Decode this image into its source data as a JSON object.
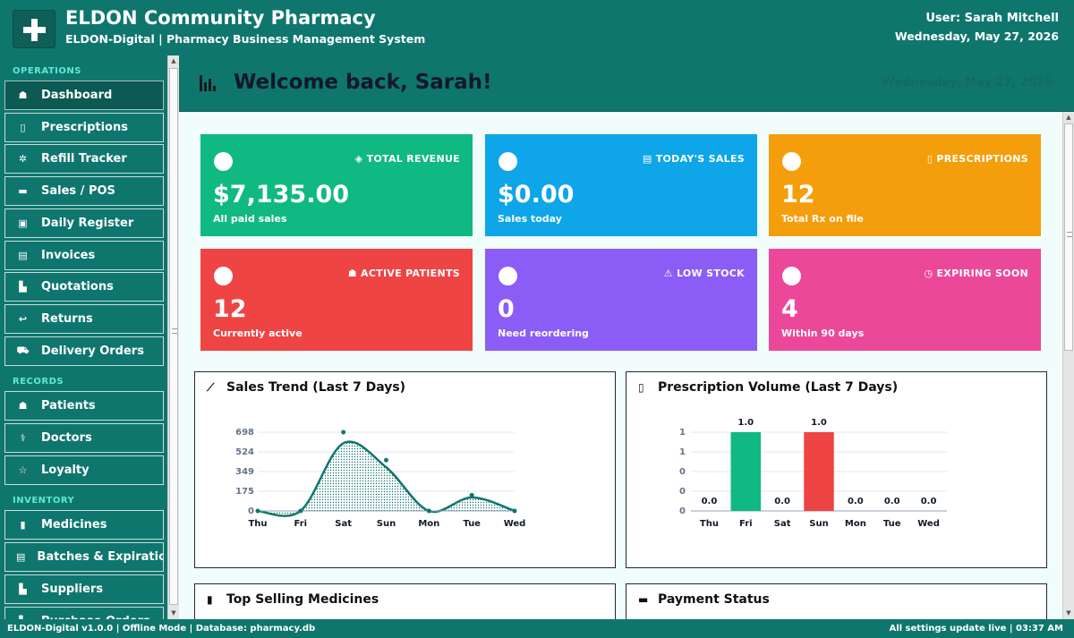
{
  "header": {
    "title": "ELDON Community Pharmacy",
    "subtitle": "ELDON-Digital  |  Pharmacy Business Management System",
    "user": "User: Sarah Mitchell",
    "date": "Wednesday, May 27, 2026"
  },
  "sidebar": {
    "sections": [
      {
        "label": "OPERATIONS",
        "items": [
          {
            "icon": "home-icon",
            "glyph": "☗",
            "label": "Dashboard",
            "active": true
          },
          {
            "icon": "clipboard-icon",
            "glyph": "▯",
            "label": "Prescriptions"
          },
          {
            "icon": "refill-icon",
            "glyph": "✲",
            "label": "Refill Tracker"
          },
          {
            "icon": "card-icon",
            "glyph": "▬",
            "label": "Sales / POS"
          },
          {
            "icon": "register-icon",
            "glyph": "▣",
            "label": "Daily Register"
          },
          {
            "icon": "invoice-icon",
            "glyph": "▤",
            "label": "Invoices"
          },
          {
            "icon": "quote-icon",
            "glyph": "▙",
            "label": "Quotations"
          },
          {
            "icon": "return-icon",
            "glyph": "↩",
            "label": "Returns"
          },
          {
            "icon": "truck-icon",
            "glyph": "⛟",
            "label": "Delivery Orders"
          }
        ]
      },
      {
        "label": "RECORDS",
        "items": [
          {
            "icon": "patients-icon",
            "glyph": "☗",
            "label": "Patients"
          },
          {
            "icon": "stethoscope-icon",
            "glyph": "⚕",
            "label": "Doctors"
          },
          {
            "icon": "star-icon",
            "glyph": "☆",
            "label": "Loyalty"
          }
        ]
      },
      {
        "label": "INVENTORY",
        "items": [
          {
            "icon": "medicine-icon",
            "glyph": "▮",
            "label": "Medicines"
          },
          {
            "icon": "batches-icon",
            "glyph": "▤",
            "label": "Batches & Expiratio"
          },
          {
            "icon": "suppliers-icon",
            "glyph": "▙",
            "label": "Suppliers"
          },
          {
            "icon": "cart-icon",
            "glyph": "▚",
            "label": "Purchase Orders"
          }
        ]
      }
    ]
  },
  "welcome": {
    "title": "Welcome back, Sarah!",
    "date": "Wednesday, May 27, 2026"
  },
  "cards": [
    {
      "icon": "revenue-icon",
      "glyph": "◈",
      "label": "TOTAL REVENUE",
      "value": "$7,135.00",
      "sub": "All paid sales",
      "color": "#10b981"
    },
    {
      "icon": "sales-icon",
      "glyph": "▤",
      "label": "TODAY'S SALES",
      "value": "$0.00",
      "sub": "Sales today",
      "color": "#0ea5e9"
    },
    {
      "icon": "prescription-icon",
      "glyph": "▯",
      "label": "PRESCRIPTIONS",
      "value": "12",
      "sub": "Total Rx on file",
      "color": "#f59e0b"
    },
    {
      "icon": "patients-icon",
      "glyph": "☗",
      "label": "ACTIVE PATIENTS",
      "value": "12",
      "sub": "Currently active",
      "color": "#ef4444"
    },
    {
      "icon": "warning-icon",
      "glyph": "⚠",
      "label": "LOW STOCK",
      "value": "0",
      "sub": "Need reordering",
      "color": "#8b5cf6"
    },
    {
      "icon": "clock-icon",
      "glyph": "◷",
      "label": "EXPIRING SOON",
      "value": "4",
      "sub": "Within 90 days",
      "color": "#ec4899"
    }
  ],
  "panels": {
    "sales_trend": {
      "title": "Sales Trend (Last 7 Days)",
      "icon": "line-chart-icon",
      "glyph": "⟋"
    },
    "rx_volume": {
      "title": "Prescription Volume (Last 7 Days)",
      "icon": "clipboard-icon",
      "glyph": "▯"
    },
    "top_selling": {
      "title": "Top Selling Medicines",
      "icon": "pill-icon",
      "glyph": "▮"
    },
    "payment_status": {
      "title": "Payment Status",
      "icon": "card-icon",
      "glyph": "▬"
    }
  },
  "chart_data": [
    {
      "type": "area",
      "title": "Sales Trend (Last 7 Days)",
      "categories": [
        "Thu",
        "Fri",
        "Sat",
        "Sun",
        "Mon",
        "Tue",
        "Wed"
      ],
      "values": [
        0,
        0,
        698,
        450,
        0,
        140,
        0
      ],
      "yticks": [
        "0",
        "175",
        "349",
        "524",
        "698"
      ],
      "ylim": [
        0,
        698
      ],
      "color": "#0f766e",
      "grid": true
    },
    {
      "type": "bar",
      "title": "Prescription Volume (Last 7 Days)",
      "categories": [
        "Thu",
        "Fri",
        "Sat",
        "Sun",
        "Mon",
        "Tue",
        "Wed"
      ],
      "values": [
        0,
        1,
        0,
        1,
        0,
        0,
        0
      ],
      "data_labels": [
        "0.0",
        "1.0",
        "0.0",
        "1.0",
        "0.0",
        "0.0",
        "0.0"
      ],
      "yticks": [
        "0",
        "0",
        "0",
        "1",
        "1"
      ],
      "ylim": [
        0,
        1
      ],
      "colors": [
        "#10b981",
        "#10b981",
        "#10b981",
        "#ef4444",
        "#10b981",
        "#10b981",
        "#10b981"
      ],
      "grid": true
    }
  ],
  "footer": {
    "left": "ELDON-Digital v1.0.0  |  Offline Mode  |  Database: pharmacy.db",
    "right": "All settings update live   |   03:37 AM"
  }
}
